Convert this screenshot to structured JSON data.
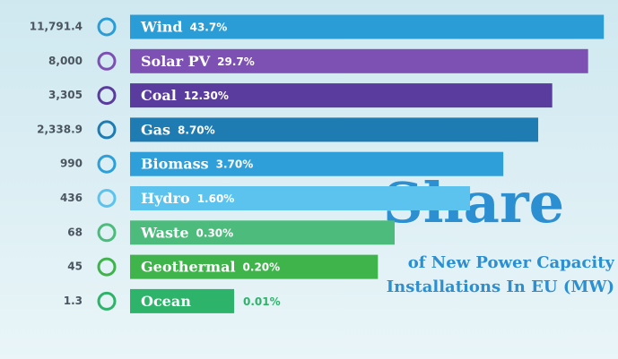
{
  "chart_data": {
    "type": "bar",
    "orientation": "horizontal",
    "title": "Share",
    "subtitle": "of New Power Capacity Installations In EU (MW)",
    "categories": [
      "Wind",
      "Solar PV",
      "Coal",
      "Gas",
      "Biomass",
      "Hydro",
      "Waste",
      "Geothermal",
      "Ocean"
    ],
    "values": [
      11791.4,
      8000,
      3305,
      2338.9,
      990,
      436,
      68,
      45,
      1.3
    ],
    "value_labels": [
      "11,791.4",
      "8,000",
      "3,305",
      "2,338.9",
      "990",
      "436",
      "68",
      "45",
      "1.3"
    ],
    "shares": [
      43.7,
      29.7,
      12.3,
      8.7,
      3.7,
      1.6,
      0.3,
      0.2,
      0.01
    ],
    "share_labels": [
      "43.7%",
      "29.7%",
      "12.30%",
      "8.70%",
      "3.70%",
      "1.60%",
      "0.30%",
      "0.20%",
      "0.01%"
    ],
    "colors": [
      "#2b9dd6",
      "#7d50b3",
      "#5a3c9f",
      "#1f7cb2",
      "#2e9fd9",
      "#5cc3ee",
      "#4dbb7c",
      "#3fb44b",
      "#2eb36b"
    ],
    "xlim": [
      0.1,
      12000
    ],
    "log_scale": true
  }
}
